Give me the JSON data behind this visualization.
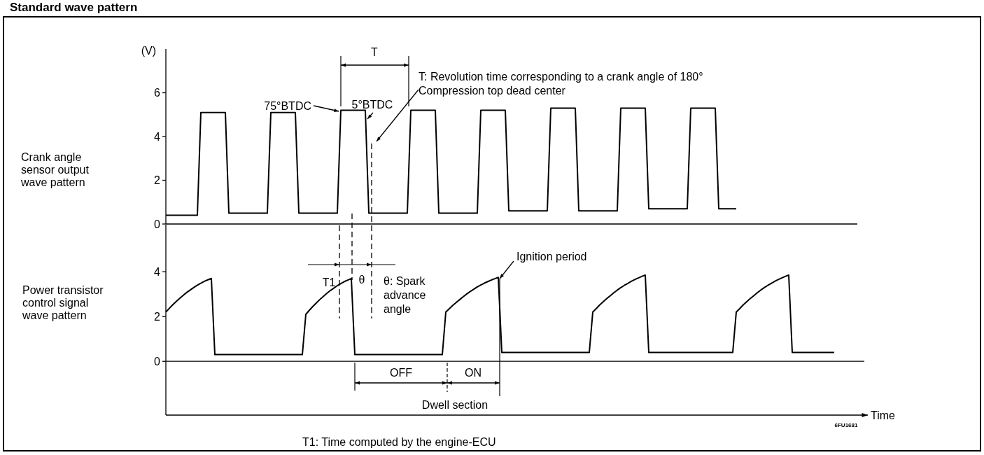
{
  "chart_data": [
    {
      "type": "line",
      "title": "Standard wave pattern",
      "ylabel": "(V)",
      "tick_labels": "y",
      "ylim": [
        0,
        8
      ],
      "yticks": [
        0,
        2,
        4,
        6
      ],
      "categories": [
        null,
        null,
        null,
        null,
        null,
        null,
        null,
        null,
        null,
        null,
        null,
        null,
        null,
        null,
        null,
        null,
        null,
        null,
        null,
        null,
        null,
        null,
        null,
        null,
        null,
        null,
        null,
        null,
        null,
        null,
        null,
        null,
        null,
        null,
        null,
        null,
        null,
        null,
        null,
        null,
        null,
        null,
        null,
        null,
        null,
        null,
        null,
        null,
        null,
        null,
        null,
        null,
        null,
        null,
        null,
        null,
        null,
        null,
        null,
        null,
        null,
        null,
        null,
        null,
        null,
        null,
        null,
        null,
        null,
        null,
        null,
        null,
        null,
        null,
        null,
        null,
        null,
        null,
        null,
        null,
        null,
        null,
        null,
        null,
        null,
        null,
        null,
        null,
        null,
        null,
        null,
        null,
        null,
        null,
        null,
        null,
        null,
        null,
        null,
        null,
        null,
        null,
        null,
        null,
        null,
        null,
        null,
        null,
        null,
        null,
        null,
        null,
        null,
        null,
        null,
        null,
        null,
        null,
        null,
        null,
        null,
        null,
        null,
        null,
        null,
        null,
        null,
        null,
        null,
        null,
        null,
        null,
        null,
        null,
        null,
        null,
        null,
        null,
        null,
        null,
        null,
        null,
        null,
        null,
        null,
        null,
        null,
        null,
        null,
        null,
        null,
        null,
        null,
        null,
        null,
        null,
        null,
        null,
        null,
        null,
        null,
        null,
        null,
        null,
        null,
        null,
        null,
        null,
        null,
        null,
        null,
        null,
        null,
        null,
        null,
        null,
        null,
        null,
        null,
        null,
        null,
        null,
        null,
        null,
        null,
        null,
        null,
        null,
        null,
        null,
        null,
        null,
        null,
        null,
        null,
        null,
        null,
        null,
        null,
        null
      ],
      "series": [
        {
          "name": "Crank angle sensor output wave pattern",
          "color": "#000000",
          "values": [
            0.4,
            0.4,
            0.4,
            0.4,
            0.4,
            0.4,
            0.4,
            0.4,
            0.4,
            0.4,
            5.1,
            5.1,
            5.1,
            5.1,
            5.1,
            5.1,
            5.1,
            5.1,
            0.5,
            0.5,
            0.5,
            0.5,
            0.5,
            0.5,
            0.5,
            0.5,
            0.5,
            0.5,
            0.5,
            0.5,
            5.1,
            5.1,
            5.1,
            5.1,
            5.1,
            5.1,
            5.1,
            5.1,
            0.5,
            0.5,
            0.5,
            0.5,
            0.5,
            0.5,
            0.5,
            0.5,
            0.5,
            0.5,
            0.5,
            0.5,
            5.2,
            5.2,
            5.2,
            5.2,
            5.2,
            5.2,
            5.2,
            5.2,
            0.5,
            0.5,
            0.5,
            0.5,
            0.5,
            0.5,
            0.5,
            0.5,
            0.5,
            0.5,
            0.5,
            0.5,
            5.2,
            5.2,
            5.2,
            5.2,
            5.2,
            5.2,
            5.2,
            5.2,
            0.5,
            0.5,
            0.5,
            0.5,
            0.5,
            0.5,
            0.5,
            0.5,
            0.5,
            0.5,
            0.5,
            0.5,
            5.2,
            5.2,
            5.2,
            5.2,
            5.2,
            5.2,
            5.2,
            5.2,
            0.6,
            0.6,
            0.6,
            0.6,
            0.6,
            0.6,
            0.6,
            0.6,
            0.6,
            0.6,
            0.6,
            0.6,
            5.3,
            5.3,
            5.3,
            5.3,
            5.3,
            5.3,
            5.3,
            5.3,
            0.6,
            0.6,
            0.6,
            0.6,
            0.6,
            0.6,
            0.6,
            0.6,
            0.6,
            0.6,
            0.6,
            0.6,
            5.3,
            5.3,
            5.3,
            5.3,
            5.3,
            5.3,
            5.3,
            5.3,
            0.7,
            0.7,
            0.7,
            0.7,
            0.7,
            0.7,
            0.7,
            0.7,
            0.7,
            0.7,
            0.7,
            0.7,
            5.3,
            5.3,
            5.3,
            5.3,
            5.3,
            5.3,
            5.3,
            5.3,
            0.7,
            0.7,
            0.7,
            0.7,
            0.7,
            0.7,
            null,
            null,
            null,
            null,
            null,
            null,
            null,
            null,
            null,
            null,
            null,
            null,
            null,
            null,
            null,
            null,
            null,
            null,
            null,
            null,
            null,
            null,
            null,
            null,
            null,
            null,
            null,
            null,
            null,
            null,
            null,
            null,
            null,
            null,
            null,
            null
          ]
        }
      ],
      "annotations": [
        "T",
        "T: Revolution time corresponding to a crank angle of 180°",
        "Compression top dead center",
        "75°BTDC",
        "5°BTDC"
      ]
    },
    {
      "type": "line",
      "xlabel": "Time",
      "tick_labels": "y",
      "ylim": [
        -2.4,
        6.1
      ],
      "yticks": [
        0,
        2,
        4
      ],
      "categories": [
        null,
        null,
        null,
        null,
        null,
        null,
        null,
        null,
        null,
        null,
        null,
        null,
        null,
        null,
        null,
        null,
        null,
        null,
        null,
        null,
        null,
        null,
        null,
        null,
        null,
        null,
        null,
        null,
        null,
        null,
        null,
        null,
        null,
        null,
        null,
        null,
        null,
        null,
        null,
        null,
        null,
        null,
        null,
        null,
        null,
        null,
        null,
        null,
        null,
        null,
        null,
        null,
        null,
        null,
        null,
        null,
        null,
        null,
        null,
        null,
        null,
        null,
        null,
        null,
        null,
        null,
        null,
        null,
        null,
        null,
        null,
        null,
        null,
        null,
        null,
        null,
        null,
        null,
        null,
        null,
        null,
        null,
        null,
        null,
        null,
        null,
        null,
        null,
        null,
        null,
        null,
        null,
        null,
        null,
        null,
        null,
        null,
        null,
        null,
        null,
        null,
        null,
        null,
        null,
        null,
        null,
        null,
        null,
        null,
        null,
        null,
        null,
        null,
        null,
        null,
        null,
        null,
        null,
        null,
        null,
        null,
        null,
        null,
        null,
        null,
        null,
        null,
        null,
        null,
        null,
        null,
        null,
        null,
        null,
        null,
        null,
        null,
        null,
        null,
        null,
        null,
        null,
        null,
        null,
        null,
        null,
        null,
        null,
        null,
        null,
        null,
        null,
        null,
        null,
        null,
        null,
        null,
        null,
        null,
        null,
        null,
        null,
        null,
        null,
        null,
        null,
        null,
        null,
        null,
        null,
        null,
        null,
        null,
        null,
        null,
        null,
        null,
        null,
        null,
        null,
        null,
        null,
        null,
        null,
        null,
        null,
        null,
        null,
        null,
        null,
        null,
        null,
        null,
        null,
        null,
        null,
        null,
        null,
        null,
        null
      ],
      "series": [
        {
          "name": "Power transistor control signal wave pattern",
          "color": "#000000",
          "values": [
            2.2,
            2.37,
            2.53,
            2.68,
            2.82,
            2.95,
            3.08,
            3.19,
            3.3,
            3.4,
            3.49,
            3.57,
            3.64,
            3.7,
            0.3,
            0.3,
            0.3,
            0.3,
            0.3,
            0.3,
            0.3,
            0.3,
            0.3,
            0.3,
            0.3,
            0.3,
            0.3,
            0.3,
            0.3,
            0.3,
            0.3,
            0.3,
            0.3,
            0.3,
            0.3,
            0.3,
            0.3,
            0.3,
            0.3,
            0.3,
            2.1,
            2.28,
            2.45,
            2.61,
            2.76,
            2.9,
            3.04,
            3.16,
            3.27,
            3.38,
            3.47,
            3.56,
            3.63,
            3.7,
            0.3,
            0.3,
            0.3,
            0.3,
            0.3,
            0.3,
            0.3,
            0.3,
            0.3,
            0.3,
            0.3,
            0.3,
            0.3,
            0.3,
            0.3,
            0.3,
            0.3,
            0.3,
            0.3,
            0.3,
            0.3,
            0.3,
            0.3,
            0.3,
            0.3,
            0.3,
            2.2,
            2.35,
            2.5,
            2.63,
            2.76,
            2.89,
            3.01,
            3.12,
            3.22,
            3.32,
            3.41,
            3.49,
            3.56,
            3.63,
            3.69,
            3.75,
            0.4,
            0.4,
            0.4,
            0.4,
            0.4,
            0.4,
            0.4,
            0.4,
            0.4,
            0.4,
            0.4,
            0.4,
            0.4,
            0.4,
            0.4,
            0.4,
            0.4,
            0.4,
            0.4,
            0.4,
            0.4,
            0.4,
            0.4,
            0.4,
            0.4,
            0.4,
            2.2,
            2.36,
            2.52,
            2.66,
            2.8,
            2.93,
            3.06,
            3.18,
            3.29,
            3.39,
            3.48,
            3.57,
            3.65,
            3.72,
            3.79,
            3.85,
            0.4,
            0.4,
            0.4,
            0.4,
            0.4,
            0.4,
            0.4,
            0.4,
            0.4,
            0.4,
            0.4,
            0.4,
            0.4,
            0.4,
            0.4,
            0.4,
            0.4,
            0.4,
            0.4,
            0.4,
            0.4,
            0.4,
            0.4,
            0.4,
            0.4,
            2.2,
            2.36,
            2.52,
            2.66,
            2.8,
            2.93,
            3.06,
            3.18,
            3.29,
            3.39,
            3.48,
            3.57,
            3.65,
            3.72,
            3.79,
            3.85,
            0.4,
            0.4,
            0.4,
            0.4,
            0.4,
            0.4,
            0.4,
            0.4,
            0.4,
            0.4,
            0.4,
            0.4,
            0.4,
            null,
            null,
            null,
            null,
            null,
            null,
            null,
            null
          ]
        }
      ],
      "ref_lines": [
        {
          "axis": "y",
          "value": 0
        }
      ],
      "annotations": [
        "T1",
        "θ",
        "θ: Spark advance angle",
        "Ignition period",
        "OFF",
        "ON",
        "Dwell section",
        "6FU1681",
        "T1: Time computed by the engine-ECU"
      ]
    }
  ]
}
